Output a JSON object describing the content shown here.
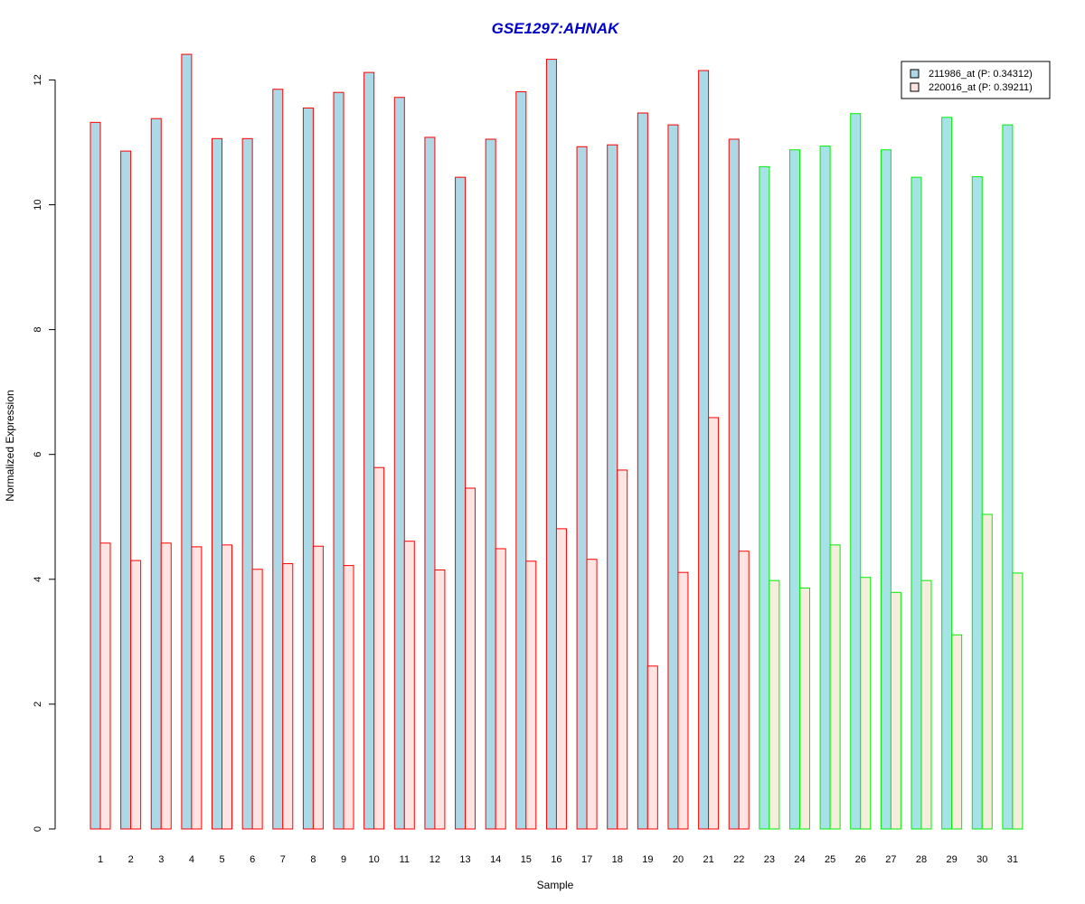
{
  "chart_data": {
    "type": "bar",
    "title": "GSE1297:AHNAK",
    "xlabel": "Sample",
    "ylabel": "Normalized Expression",
    "ylim": [
      0,
      12
    ],
    "yticks": [
      "0",
      "2",
      "4",
      "6",
      "8",
      "10",
      "12"
    ],
    "grid": false,
    "legend_position": "top-right",
    "categories": [
      "1",
      "2",
      "3",
      "4",
      "5",
      "6",
      "7",
      "8",
      "9",
      "10",
      "11",
      "12",
      "13",
      "14",
      "15",
      "16",
      "17",
      "18",
      "19",
      "20",
      "21",
      "22",
      "23",
      "24",
      "25",
      "26",
      "27",
      "28",
      "29",
      "30",
      "31"
    ],
    "series": [
      {
        "name": "211986_at (P: 0.34312)",
        "values": [
          11.32,
          10.86,
          11.38,
          12.41,
          11.06,
          11.06,
          11.85,
          11.55,
          11.8,
          12.12,
          11.72,
          11.08,
          10.44,
          11.05,
          11.81,
          12.33,
          10.93,
          10.96,
          11.47,
          11.28,
          12.15,
          11.05,
          10.61,
          10.88,
          10.94,
          11.46,
          10.88,
          10.44,
          11.4,
          10.45,
          11.28
        ]
      },
      {
        "name": "220016_at (P: 0.39211)",
        "values": [
          4.58,
          4.3,
          4.58,
          4.52,
          4.55,
          4.16,
          4.25,
          4.53,
          4.22,
          5.79,
          4.61,
          4.15,
          5.46,
          4.49,
          4.29,
          4.81,
          4.32,
          5.75,
          2.61,
          4.11,
          6.59,
          4.45,
          3.98,
          3.86,
          4.55,
          4.03,
          3.79,
          3.98,
          3.11,
          5.04,
          4.1
        ]
      }
    ],
    "groups": [
      {
        "samples": "1-22",
        "border_color": "#ff0000"
      },
      {
        "samples": "23-31",
        "border_color": "#00ee00"
      }
    ],
    "colors": {
      "series1_fill_group1": "#add8e6",
      "series2_fill_group1": "#ffe4e1",
      "series1_fill_group2": "#a6e3e6",
      "series2_fill_group2": "#f5eedc",
      "title": "#0000cd"
    }
  }
}
